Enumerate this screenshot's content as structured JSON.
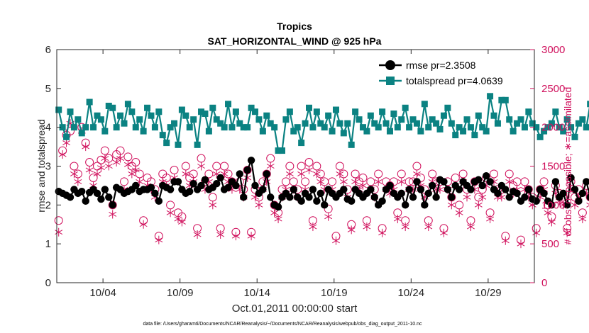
{
  "chart_data": {
    "type": "line",
    "title": "Tropics",
    "subtitle": "SAT_HORIZONTAL_WIND @ 925 hPa",
    "xlabel": "Oct.01,2011 00:00:00 start",
    "ylabel_left": "rmse and totalspread",
    "ylabel_right": "# of obs: o=possible; ∗=assimilated",
    "footnote": "data file: /Users/gharamti/Documents/NCAR/Reanalysis/~/Documents/NCAR/Reanalysis/webpub/obs_diag_output_2011-10.nc",
    "x_ticks": [
      {
        "label": "10/04",
        "day": 4
      },
      {
        "label": "10/09",
        "day": 9
      },
      {
        "label": "10/14",
        "day": 14
      },
      {
        "label": "10/19",
        "day": 19
      },
      {
        "label": "10/24",
        "day": 24
      },
      {
        "label": "10/29",
        "day": 29
      }
    ],
    "xlim": [
      1,
      32
    ],
    "ylim_left": [
      0,
      6
    ],
    "yticks_left": [
      "0",
      "1",
      "2",
      "3",
      "4",
      "5",
      "6"
    ],
    "ylim_right": [
      0,
      3000
    ],
    "yticks_right": [
      "0",
      "500",
      "1000",
      "1500",
      "2000",
      "2500",
      "3000"
    ],
    "legend_position": "top-right",
    "legend": [
      "rmse pr=2.3508",
      "totalspread pr=4.0639"
    ],
    "colors": {
      "rmse": "#000000",
      "totalspread": "#0b8282",
      "obs": "#d0105c",
      "axis": "#262626"
    },
    "samples_per_day": 4,
    "series": [
      {
        "name": "rmse",
        "axis": "left",
        "values": [
          2.35,
          2.3,
          2.25,
          2.2,
          2.4,
          2.3,
          2.35,
          2.1,
          2.32,
          2.4,
          2.3,
          2.15,
          2.4,
          2.2,
          2.0,
          2.45,
          2.4,
          2.3,
          2.35,
          2.4,
          2.5,
          2.35,
          2.4,
          2.4,
          2.45,
          2.3,
          2.1,
          2.5,
          2.45,
          2.4,
          2.6,
          2.6,
          2.4,
          2.3,
          2.35,
          2.55,
          2.4,
          2.5,
          2.65,
          2.4,
          2.45,
          2.55,
          2.7,
          2.4,
          2.45,
          2.6,
          2.5,
          2.8,
          2.2,
          2.9,
          3.15,
          2.5,
          2.3,
          2.4,
          2.8,
          2.2,
          2.0,
          1.95,
          2.2,
          2.3,
          2.2,
          2.4,
          2.2,
          2.1,
          2.3,
          2.2,
          2.4,
          2.1,
          2.3,
          2.0,
          2.4,
          2.3,
          2.2,
          2.3,
          2.4,
          2.15,
          2.1,
          2.4,
          2.3,
          2.2,
          2.3,
          2.4,
          2.2,
          2.0,
          2.1,
          2.4,
          2.5,
          2.3,
          2.2,
          2.3,
          2.0,
          2.4,
          2.2,
          2.6,
          2.4,
          2.0,
          2.3,
          2.5,
          2.2,
          2.65,
          2.6,
          2.4,
          2.2,
          2.5,
          2.4,
          2.6,
          2.5,
          2.4,
          2.6,
          2.65,
          2.5,
          2.75,
          2.6,
          2.4,
          2.3,
          2.5,
          2.4,
          2.2,
          2.35,
          2.3,
          2.1,
          2.2,
          2.4,
          2.15,
          2.1,
          2.4,
          2.3,
          2.1,
          2.0,
          2.6,
          2.2,
          2.3,
          2.0,
          2.7,
          2.4,
          2.1,
          2.3,
          2.6,
          2.2,
          2.4,
          2.15,
          2.4,
          2.1,
          2.0,
          2.3,
          2.4,
          2.2,
          2.0,
          2.4,
          2.1,
          1.9
        ]
      },
      {
        "name": "totalspread",
        "axis": "left",
        "values": [
          4.45,
          4.0,
          3.75,
          4.4,
          4.0,
          4.2,
          3.85,
          4.0,
          4.65,
          4.0,
          4.3,
          4.2,
          3.9,
          4.55,
          4.5,
          4.0,
          4.3,
          4.1,
          4.6,
          4.4,
          4.0,
          4.2,
          3.9,
          4.5,
          4.3,
          4.0,
          4.4,
          3.8,
          3.6,
          4.0,
          4.1,
          3.55,
          4.45,
          4.3,
          4.0,
          4.2,
          3.55,
          4.4,
          4.35,
          3.9,
          4.5,
          4.2,
          4.1,
          4.0,
          4.6,
          4.0,
          4.4,
          4.1,
          4.0,
          4.0,
          4.5,
          4.4,
          4.2,
          3.9,
          4.3,
          4.1,
          4.0,
          3.4,
          3.4,
          4.2,
          4.4,
          3.9,
          4.0,
          3.6,
          4.1,
          4.5,
          4.0,
          4.4,
          4.1,
          4.0,
          4.3,
          3.9,
          4.45,
          4.1,
          3.85,
          4.1,
          3.55,
          4.4,
          4.2,
          4.0,
          3.9,
          4.3,
          4.1,
          4.0,
          4.4,
          4.1,
          3.9,
          4.35,
          4.0,
          4.2,
          4.5,
          4.0,
          4.2,
          4.1,
          3.9,
          4.6,
          4.0,
          4.2,
          4.1,
          3.95,
          4.3,
          4.5,
          4.1,
          3.8,
          4.0,
          3.9,
          4.2,
          4.0,
          3.8,
          4.3,
          4.0,
          3.9,
          4.8,
          4.3,
          4.1,
          4.7,
          4.7,
          4.2,
          3.9,
          4.1,
          4.2,
          4.0,
          4.4,
          4.1,
          4.0,
          3.75,
          3.9,
          4.0,
          4.1,
          4.4,
          4.0,
          3.9,
          4.2,
          4.0,
          3.75,
          4.1,
          4.2,
          4.0,
          4.6,
          4.4,
          4.1,
          4.0,
          3.9,
          4.3,
          4.1,
          3.7,
          4.0,
          3.9,
          4.2,
          4.0,
          3.85,
          4.0
        ]
      },
      {
        "name": "# of obs possible",
        "axis": "right",
        "marker": "circle",
        "values": [
          800,
          1700,
          1900,
          1950,
          1500,
          1400,
          2000,
          1800,
          1550,
          1350,
          1500,
          1580,
          1700,
          1600,
          1000,
          1650,
          1700,
          1300,
          1620,
          1500,
          1550,
          1400,
          800,
          1350,
          1300,
          1200,
          600,
          1400,
          1350,
          1000,
          1450,
          900,
          850,
          1500,
          1350,
          1400,
          700,
          1600,
          1300,
          1400,
          1100,
          1500,
          700,
          1500,
          1400,
          1300,
          650,
          1300,
          1200,
          1450,
          650,
          1200,
          1100,
          1300,
          1400,
          1600,
          1000,
          900,
          1200,
          1300,
          1500,
          1300,
          1200,
          1500,
          1300,
          1550,
          800,
          1500,
          1400,
          1300,
          950,
          1300,
          600,
          1500,
          1400,
          1200,
          750,
          1400,
          1300,
          1350,
          800,
          1300,
          1200,
          1400,
          700,
          1300,
          1250,
          1300,
          900,
          1400,
          800,
          1300,
          1300,
          1500,
          1350,
          1200,
          800,
          1400,
          1300,
          1300,
          700,
          1300,
          1100,
          1350,
          1000,
          1400,
          1200,
          800,
          1300,
          1100,
          1200,
          1350,
          900,
          1400,
          1200,
          1200,
          600,
          1400,
          1250,
          1300,
          550,
          1300,
          1200,
          1100,
          700,
          1200,
          1300,
          1000,
          850,
          1250,
          1150,
          1100,
          700,
          1300,
          1100,
          1200,
          900,
          1250,
          1100,
          1100,
          800,
          1200,
          1000,
          1200,
          800,
          1300,
          1200,
          1000,
          800,
          1300,
          800
        ]
      },
      {
        "name": "# of obs assimilated",
        "axis": "right",
        "marker": "asterisk",
        "values": [
          650,
          1650,
          1800,
          2050,
          1400,
          1300,
          1950,
          1750,
          1450,
          1250,
          1400,
          1480,
          1600,
          1500,
          880,
          1550,
          1600,
          1200,
          1520,
          1400,
          1450,
          1300,
          750,
          1250,
          1200,
          1100,
          550,
          1300,
          1250,
          900,
          1350,
          820,
          780,
          1400,
          1250,
          1300,
          620,
          1500,
          1200,
          1300,
          1000,
          1400,
          620,
          1400,
          1300,
          1200,
          600,
          1200,
          1100,
          1350,
          600,
          1100,
          1000,
          1200,
          1300,
          1500,
          900,
          820,
          1100,
          1200,
          1400,
          1200,
          1100,
          1400,
          1200,
          1450,
          720,
          1400,
          1300,
          1200,
          850,
          1200,
          540,
          1400,
          1300,
          1100,
          680,
          1300,
          1200,
          1250,
          720,
          1200,
          1100,
          1300,
          640,
          1200,
          1150,
          1200,
          820,
          1300,
          720,
          1200,
          1200,
          1400,
          1250,
          1100,
          720,
          1300,
          1200,
          1200,
          640,
          1200,
          1000,
          1250,
          900,
          1300,
          1100,
          720,
          1200,
          1000,
          1100,
          1250,
          820,
          1300,
          1100,
          1100,
          540,
          1300,
          1150,
          1200,
          500,
          1200,
          1100,
          1000,
          640,
          1100,
          1200,
          900,
          780,
          1150,
          1050,
          1000,
          640,
          1200,
          1000,
          1100,
          820,
          1150,
          1000,
          1000,
          720,
          1100,
          900,
          1100,
          720,
          1200,
          1100,
          900,
          720,
          1200,
          0
        ]
      }
    ]
  }
}
